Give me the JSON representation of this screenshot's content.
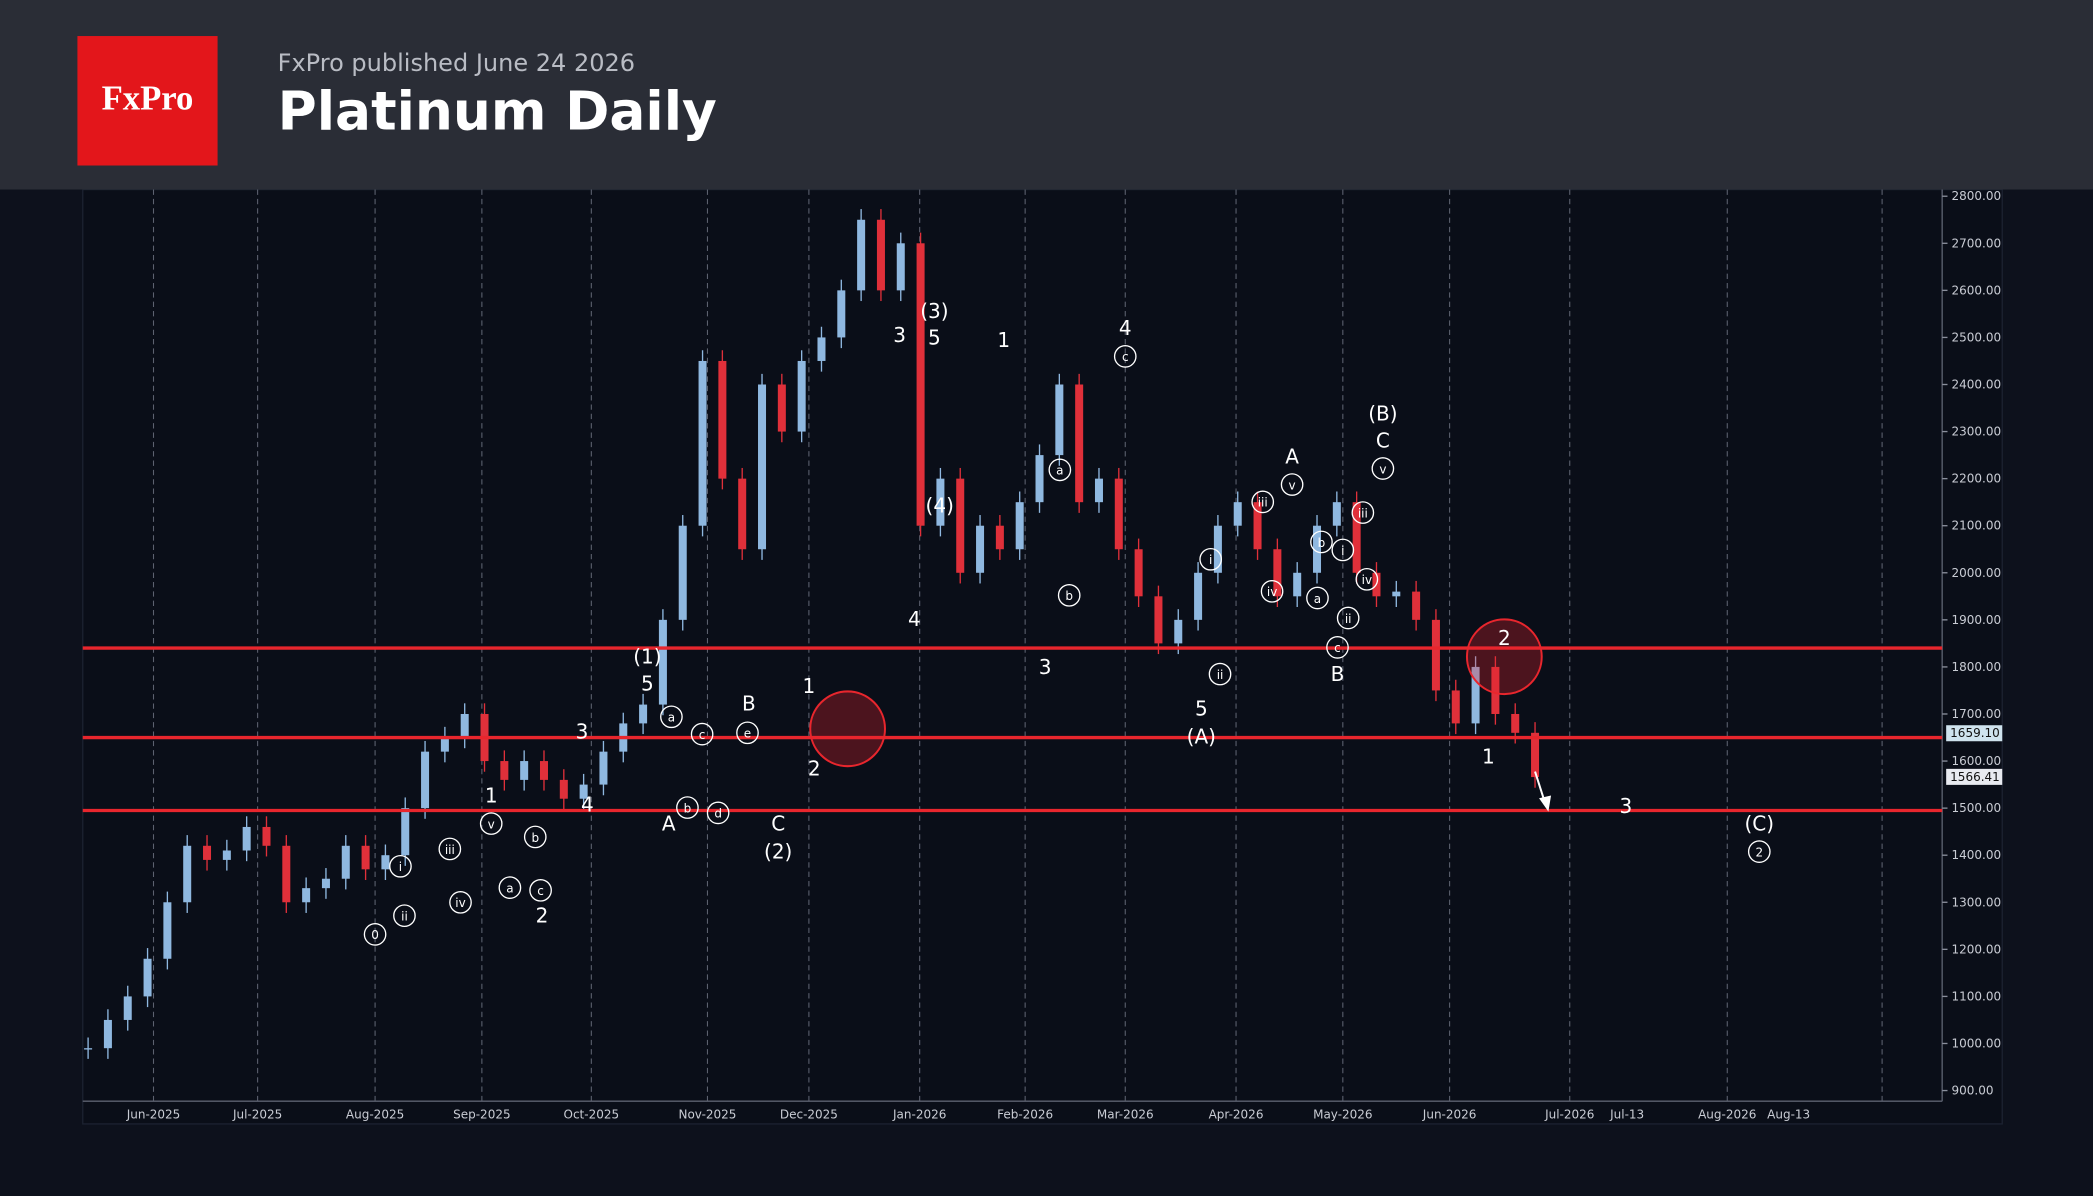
{
  "header": {
    "logo": "FxPro",
    "subtitle": "FxPro published June 24 2026",
    "title": "Platinum Daily"
  },
  "chart_data": {
    "type": "candlestick",
    "values": [
      990,
      1050,
      1100,
      1180,
      1300,
      1420,
      1390,
      1410,
      1460,
      1420,
      1300,
      1330,
      1350,
      1420,
      1370,
      1400,
      1500,
      1620,
      1650,
      1700,
      1600,
      1560,
      1600,
      1560,
      1520,
      1550,
      1620,
      1680,
      1720,
      1900,
      2100,
      2450,
      2200,
      2050,
      2400,
      2300,
      2450,
      2500,
      2600,
      2750,
      2600,
      2700,
      2100,
      2200,
      2000,
      2100,
      2050,
      2150,
      2250,
      2400,
      2150,
      2200,
      2050,
      1950,
      1850,
      1900,
      2000,
      2100,
      2150,
      2050,
      1950,
      2000,
      2100,
      2150,
      2000,
      1950,
      1960,
      1900,
      1750,
      1680,
      1800,
      1700,
      1660,
      1566
    ],
    "up_color": "#8fb8e0",
    "down_color": "#e0303a",
    "levels": [
      1840,
      1650,
      1495
    ],
    "level_color": "#e8262d",
    "price_labels": [
      {
        "value": 1659.1,
        "label": "1659.10"
      },
      {
        "value": 1566.41,
        "label": "1566.41"
      }
    ],
    "ylim": [
      880,
      2815
    ],
    "yticks": [
      {
        "value": 900,
        "label": "900.00"
      },
      {
        "value": 1000,
        "label": "1000.00"
      },
      {
        "value": 1100,
        "label": "1100.00"
      },
      {
        "value": 1200,
        "label": "1200.00"
      },
      {
        "value": 1300,
        "label": "1300.00"
      },
      {
        "value": 1400,
        "label": "1400.00"
      },
      {
        "value": 1500,
        "label": "1500.00"
      },
      {
        "value": 1600,
        "label": "1600.00"
      },
      {
        "value": 1700,
        "label": "1700.00"
      },
      {
        "value": 1800,
        "label": "1800.00"
      },
      {
        "value": 1900,
        "label": "1900.00"
      },
      {
        "value": 2000,
        "label": "2000.00"
      },
      {
        "value": 2100,
        "label": "2100.00"
      },
      {
        "value": 2200,
        "label": "2200.00"
      },
      {
        "value": 2300,
        "label": "2300.00"
      },
      {
        "value": 2400,
        "label": "2400.00"
      },
      {
        "value": 2500,
        "label": "2500.00"
      },
      {
        "value": 2600,
        "label": "2600.00"
      },
      {
        "value": 2700,
        "label": "2700.00"
      },
      {
        "value": 2800,
        "label": "2800.00"
      }
    ],
    "xticks": [
      "Jun-2025",
      "Jul-2025",
      "Aug-2025",
      "Sep-2025",
      "Oct-2025",
      "Nov-2025",
      "Dec-2025",
      "Jan-2026",
      "Feb-2026",
      "Mar-2026",
      "Apr-2026",
      "May-2026",
      "Jun-2026",
      "Jul-2026",
      "Jul-13",
      "Aug-2026",
      "Aug-13"
    ],
    "wave_labels": [
      {
        "text": "0",
        "circled": true
      },
      {
        "text": "i",
        "circled": true
      },
      {
        "text": "ii",
        "circled": true
      },
      {
        "text": "iii",
        "circled": true
      },
      {
        "text": "a",
        "circled": true
      },
      {
        "text": "iv",
        "circled": true
      },
      {
        "text": "v",
        "circled": true
      },
      {
        "text": "1",
        "circled": false
      },
      {
        "text": "b",
        "circled": true
      },
      {
        "text": "c",
        "circled": true
      },
      {
        "text": "2",
        "circled": false
      },
      {
        "text": "4",
        "circled": false
      },
      {
        "text": "3",
        "circled": false
      },
      {
        "text": "5",
        "circled": false
      },
      {
        "text": "(1)",
        "circled": false
      },
      {
        "text": "a",
        "circled": true
      },
      {
        "text": "A",
        "circled": false
      },
      {
        "text": "b",
        "circled": true
      },
      {
        "text": "c",
        "circled": true
      },
      {
        "text": "d",
        "circled": true
      },
      {
        "text": "B",
        "circled": false
      },
      {
        "text": "e",
        "circled": true
      },
      {
        "text": "C",
        "circled": false
      },
      {
        "text": "(2)",
        "circled": false
      },
      {
        "text": "1",
        "circled": false
      },
      {
        "text": "2",
        "circled": false
      },
      {
        "text": "3",
        "circled": false
      },
      {
        "text": "(3)",
        "circled": false
      },
      {
        "text": "5",
        "circled": false
      },
      {
        "text": "(4)",
        "circled": false
      },
      {
        "text": "4",
        "circled": false
      },
      {
        "text": "1",
        "circled": false
      },
      {
        "text": "a",
        "circled": true
      },
      {
        "text": "b",
        "circled": true
      },
      {
        "text": "3",
        "circled": false
      },
      {
        "text": "4",
        "circled": false
      },
      {
        "text": "c",
        "circled": true
      },
      {
        "text": "i",
        "circled": true
      },
      {
        "text": "ii",
        "circled": true
      },
      {
        "text": "5",
        "circled": false
      },
      {
        "text": "(A)",
        "circled": false
      },
      {
        "text": "iii",
        "circled": true
      },
      {
        "text": "iv",
        "circled": true
      },
      {
        "text": "v",
        "circled": true
      },
      {
        "text": "A",
        "circled": false
      },
      {
        "text": "b",
        "circled": true
      },
      {
        "text": "a",
        "circled": true
      },
      {
        "text": "i",
        "circled": true
      },
      {
        "text": "ii",
        "circled": true
      },
      {
        "text": "c",
        "circled": true
      },
      {
        "text": "B",
        "circled": false
      },
      {
        "text": "iii",
        "circled": true
      },
      {
        "text": "iv",
        "circled": true
      },
      {
        "text": "v",
        "circled": true
      },
      {
        "text": "C",
        "circled": false
      },
      {
        "text": "(B)",
        "circled": false
      },
      {
        "text": "2",
        "circled": false
      },
      {
        "text": "1",
        "circled": false
      },
      {
        "text": "3",
        "circled": false
      },
      {
        "text": "(C)",
        "circled": false
      },
      {
        "text": "2",
        "circled": true
      }
    ]
  }
}
